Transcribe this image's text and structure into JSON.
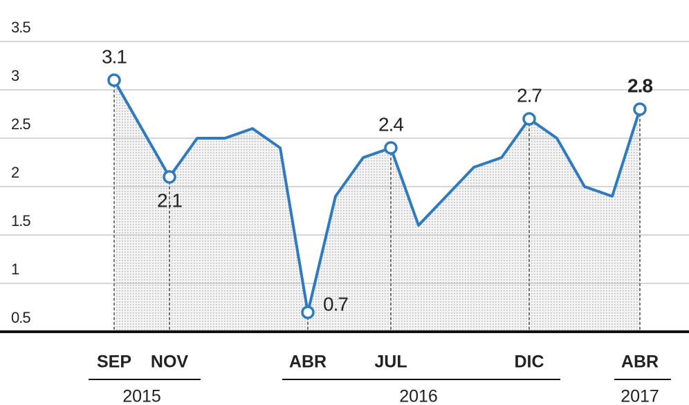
{
  "chart_data": {
    "type": "line",
    "categories": [
      "SEP",
      null,
      "NOV",
      null,
      null,
      null,
      null,
      "ABR",
      null,
      null,
      "JUL",
      null,
      null,
      null,
      null,
      "DIC",
      null,
      null,
      null,
      "ABR"
    ],
    "values": [
      3.1,
      2.6,
      2.1,
      2.5,
      2.5,
      2.6,
      2.4,
      0.7,
      1.9,
      2.3,
      2.4,
      1.6,
      1.9,
      2.2,
      2.3,
      2.7,
      2.5,
      2.0,
      1.9,
      2.8
    ],
    "color": "#2b7bc4",
    "year_groups": [
      {
        "label": "2015",
        "from": 0,
        "to": 2
      },
      {
        "label": "2016",
        "from": 7,
        "to": 15
      },
      {
        "label": "2017",
        "from": 19,
        "to": 19
      }
    ],
    "ylim": [
      0.5,
      3.5
    ],
    "yticks": [
      0.5,
      1.0,
      1.5,
      2.0,
      2.5,
      3.0,
      3.5
    ],
    "grid": true
  }
}
